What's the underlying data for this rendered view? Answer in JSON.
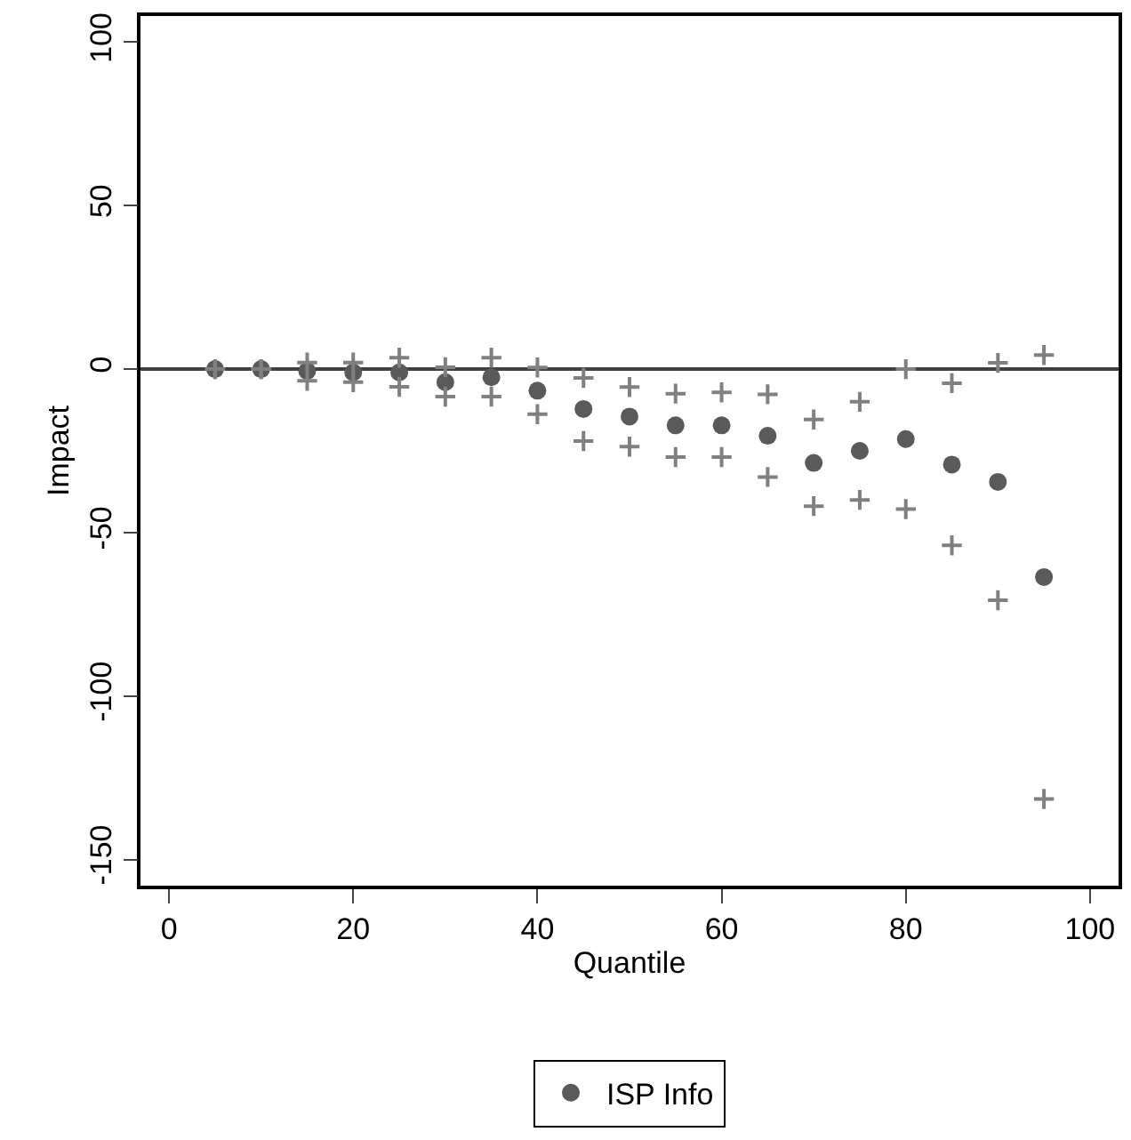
{
  "chart_data": {
    "type": "scatter",
    "xlabel": "Quantile",
    "ylabel": "Impact",
    "xlim": [
      -3.1,
      103.1
    ],
    "xticks": [
      0,
      20,
      40,
      60,
      80,
      100
    ],
    "ylim": [
      -158,
      108
    ],
    "yticks": [
      -150,
      -100,
      -50,
      0,
      50,
      100
    ],
    "x": [
      5,
      10,
      15,
      20,
      25,
      30,
      35,
      40,
      45,
      50,
      55,
      60,
      65,
      70,
      75,
      80,
      85,
      90,
      95
    ],
    "series": [
      {
        "name": "ISP Info",
        "color": "#5a5a5a",
        "marker": "circle",
        "values": [
          0,
          0,
          -0.6,
          -1,
          -1,
          -4,
          -2.5,
          -6.6,
          -12.2,
          -14.5,
          -17.2,
          -17.2,
          -20.4,
          -28.7,
          -25,
          -21.4,
          -29.2,
          -34.5,
          -63.6
        ]
      },
      {
        "color": "#808080",
        "marker": "cross",
        "values": [
          0,
          0,
          2,
          2,
          3.5,
          0.6,
          3.5,
          0.5,
          -2.7,
          -5.5,
          -7.5,
          -7.1,
          -7.7,
          -15.4,
          -10,
          0,
          -4.3,
          1.9,
          4.3
        ]
      },
      {
        "color": "#808080",
        "marker": "cross",
        "values": [
          0,
          0,
          -3.6,
          -4,
          -5.4,
          -8.4,
          -8.4,
          -13.8,
          -22,
          -23.7,
          -26.9,
          -26.9,
          -33,
          -41.9,
          -40,
          -42.8,
          -53.9,
          -70.7,
          -131.5
        ]
      }
    ],
    "ref_lines": [
      {
        "axis": "y",
        "value": 0,
        "color": "#404040"
      }
    ],
    "grid": false,
    "legend": "bottom"
  }
}
